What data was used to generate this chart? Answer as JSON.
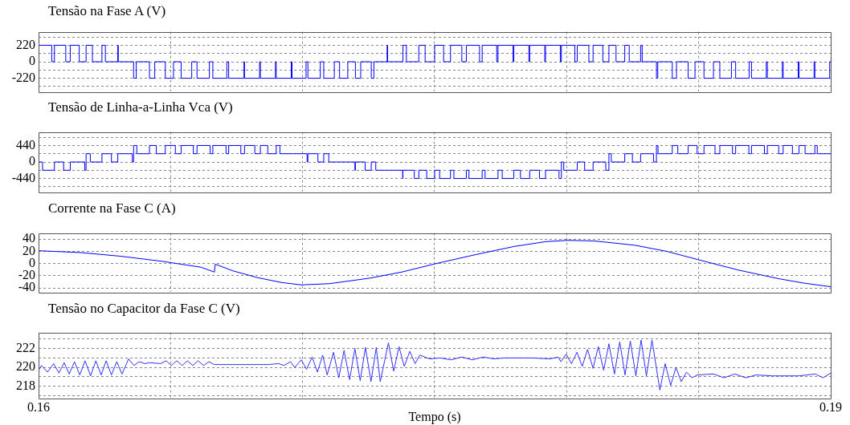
{
  "chart_data": [
    {
      "type": "step",
      "title": "Tensão na Fase A (V)",
      "color": "#0000ff",
      "grid": true,
      "tick_labels": "y",
      "xlim": [
        0.16,
        0.19
      ],
      "xticks": [
        {
          "value": 0.165,
          "label": null
        },
        {
          "value": 0.17,
          "label": null
        },
        {
          "value": 0.175,
          "label": null
        },
        {
          "value": 0.18,
          "label": null
        },
        {
          "value": 0.185,
          "label": null
        }
      ],
      "ylim": [
        -400,
        400
      ],
      "yticks": [
        {
          "value": -330,
          "label": null
        },
        -220,
        {
          "value": -110,
          "label": null
        },
        0,
        {
          "value": 110,
          "label": null
        },
        220,
        {
          "value": 330,
          "label": null
        }
      ],
      "x": [
        0.16,
        0.1605,
        0.1606,
        0.16103,
        0.1612,
        0.16154,
        0.1618,
        0.16204,
        0.1624,
        0.16253,
        0.163,
        0.16302,
        0.1636,
        0.1637,
        0.1642,
        0.1644,
        0.1648,
        0.16511,
        0.1654,
        0.1658,
        0.166,
        0.16647,
        0.1666,
        0.16713,
        0.1672,
        0.16778,
        0.1678,
        0.16837,
        0.1684,
        0.16897,
        0.169,
        0.16957,
        0.1696,
        0.17013,
        0.1702,
        0.17067,
        0.1708,
        0.1712,
        0.1714,
        0.17171,
        0.172,
        0.1722,
        0.1726,
        0.1727,
        0.1732,
        0.17322,
        0.1738,
        0.17393,
        0.1744,
        0.17464,
        0.175,
        0.17534,
        0.1756,
        0.17603,
        0.1762,
        0.1767,
        0.1768,
        0.17735,
        0.1774,
        0.17797,
        0.178,
        0.17857,
        0.1786,
        0.17917,
        0.1792,
        0.17976,
        0.1798,
        0.18031,
        0.1804,
        0.18084,
        0.181,
        0.18137,
        0.1816,
        0.18187,
        0.1822,
        0.18237,
        0.1828,
        0.18286,
        0.1834,
        0.18345,
        0.184,
        0.18416,
        0.1846,
        0.18486,
        0.1852,
        0.18556,
        0.1858,
        0.18624,
        0.1864,
        0.18691,
        0.187,
        0.18756,
        0.1876,
        0.18817,
        0.1882,
        0.18877,
        0.1888,
        0.18937,
        0.1894,
        0.18996,
        0.19
      ],
      "values": [
        220,
        0,
        220,
        0,
        220,
        0,
        220,
        0,
        220,
        0,
        220,
        0,
        -220,
        0,
        -220,
        0,
        -220,
        0,
        -220,
        0,
        -220,
        0,
        -220,
        0,
        -220,
        0,
        -220,
        0,
        -220,
        0,
        -220,
        0,
        -220,
        0,
        -220,
        0,
        -220,
        0,
        -220,
        0,
        -220,
        0,
        -220,
        0,
        220,
        0,
        220,
        0,
        220,
        0,
        220,
        0,
        220,
        0,
        220,
        0,
        220,
        0,
        220,
        0,
        220,
        0,
        220,
        0,
        220,
        0,
        220,
        0,
        220,
        0,
        220,
        0,
        220,
        0,
        220,
        0,
        220,
        0,
        -220,
        0,
        -220,
        0,
        -220,
        0,
        -220,
        0,
        -220,
        0,
        -220,
        0,
        -220,
        0,
        -220,
        0,
        -220,
        0,
        -220,
        0,
        -220,
        0,
        0
      ]
    },
    {
      "type": "step",
      "title": "Tensão de Linha-a-Linha Vca (V)",
      "color": "#0000ff",
      "grid": true,
      "tick_labels": "y",
      "xlim": [
        0.16,
        0.19
      ],
      "xticks": [
        {
          "value": 0.165,
          "label": null
        },
        {
          "value": 0.17,
          "label": null
        },
        {
          "value": 0.175,
          "label": null
        },
        {
          "value": 0.18,
          "label": null
        },
        {
          "value": 0.185,
          "label": null
        }
      ],
      "ylim": [
        -800,
        800
      ],
      "yticks": [
        {
          "value": -660,
          "label": null
        },
        -440,
        {
          "value": -220,
          "label": null
        },
        0,
        {
          "value": 220,
          "label": null
        },
        440,
        {
          "value": 660,
          "label": null
        }
      ],
      "x": [
        0.16,
        0.16015,
        0.1606,
        0.16095,
        0.1612,
        0.16175,
        0.1618,
        0.16196,
        0.1624,
        0.16276,
        0.163,
        0.16355,
        0.1636,
        0.16372,
        0.1642,
        0.16446,
        0.1648,
        0.16518,
        0.1654,
        0.16586,
        0.166,
        0.1665,
        0.1666,
        0.1671,
        0.1672,
        0.16766,
        0.1678,
        0.16819,
        0.1684,
        0.16868,
        0.169,
        0.16914,
        0.1696,
        0.17017,
        0.1702,
        0.17058,
        0.1708,
        0.17099,
        0.1714,
        0.17198,
        0.172,
        0.17237,
        0.1726,
        0.17277,
        0.1732,
        0.17379,
        0.1738,
        0.17423,
        0.1744,
        0.1747,
        0.175,
        0.17519,
        0.1756,
        0.17573,
        0.1762,
        0.1763,
        0.1768,
        0.17691,
        0.1774,
        0.17756,
        0.178,
        0.17825,
        0.1786,
        0.17897,
        0.1792,
        0.17971,
        0.1798,
        0.17989,
        0.1804,
        0.18068,
        0.181,
        0.18148,
        0.1816,
        0.18169,
        0.1822,
        0.18249,
        0.1828,
        0.18329,
        0.1834,
        0.18346,
        0.184,
        0.18421,
        0.1846,
        0.18494,
        0.1852,
        0.18562,
        0.1858,
        0.18628,
        0.1864,
        0.1869,
        0.187,
        0.18749,
        0.1876,
        0.18803,
        0.1882,
        0.18855,
        0.1888,
        0.18903,
        0.1894,
        0.18949,
        0.19
      ],
      "values": [
        0,
        -220,
        0,
        -220,
        0,
        -220,
        220,
        0,
        220,
        0,
        220,
        0,
        440,
        220,
        440,
        220,
        440,
        220,
        440,
        220,
        440,
        220,
        440,
        220,
        440,
        220,
        440,
        220,
        440,
        220,
        440,
        220,
        220,
        0,
        220,
        0,
        220,
        0,
        0,
        -220,
        0,
        -220,
        0,
        -220,
        -220,
        -440,
        -220,
        -440,
        -220,
        -440,
        -220,
        -440,
        -220,
        -440,
        -220,
        -440,
        -220,
        -440,
        -220,
        -440,
        -220,
        -440,
        -220,
        -440,
        -220,
        -440,
        0,
        -220,
        0,
        -220,
        0,
        -220,
        220,
        0,
        220,
        0,
        220,
        0,
        440,
        220,
        440,
        220,
        440,
        220,
        440,
        220,
        440,
        220,
        440,
        220,
        440,
        220,
        440,
        220,
        440,
        220,
        440,
        220,
        440,
        220,
        220
      ]
    },
    {
      "type": "line",
      "title": "Corrente na Fase C (A)",
      "color": "#0000ff",
      "grid": true,
      "tick_labels": "y",
      "xlim": [
        0.16,
        0.19
      ],
      "xticks": [
        {
          "value": 0.165,
          "label": null
        },
        {
          "value": 0.17,
          "label": null
        },
        {
          "value": 0.175,
          "label": null
        },
        {
          "value": 0.18,
          "label": null
        },
        {
          "value": 0.185,
          "label": null
        }
      ],
      "ylim": [
        -47,
        50
      ],
      "yticks": [
        -40,
        -20,
        0,
        20,
        40
      ],
      "x": [
        0.16,
        0.16158,
        0.1631,
        0.16462,
        0.16615,
        0.16666,
        0.16669,
        0.16736,
        0.16828,
        0.16919,
        0.16995,
        0.17101,
        0.17254,
        0.17375,
        0.17506,
        0.17649,
        0.17801,
        0.17923,
        0.18005,
        0.18105,
        0.18258,
        0.18379,
        0.18501,
        0.18653,
        0.18805,
        0.18897,
        0.19
      ],
      "values": [
        21,
        18,
        12,
        4,
        -6,
        -14,
        -1,
        -12,
        -23,
        -31,
        -35,
        -33,
        -24,
        -14,
        0,
        14,
        28,
        36,
        38,
        37,
        30,
        20,
        6,
        -11,
        -25,
        -32,
        -38
      ]
    },
    {
      "type": "line",
      "title": "Tensão no Capacitor da Fase C (V)",
      "xlabel": "Tempo (s)",
      "color": "#3030ff",
      "grid": true,
      "xlim": [
        0.16,
        0.19
      ],
      "xticks": [
        0.16,
        {
          "value": 0.165,
          "label": null
        },
        {
          "value": 0.17,
          "label": null
        },
        {
          "value": 0.175,
          "label": null
        },
        {
          "value": 0.18,
          "label": null
        },
        {
          "value": 0.185,
          "label": null
        },
        0.19
      ],
      "ylim": [
        216.7,
        223.7
      ],
      "yticks": [
        {
          "value": 217,
          "label": null
        },
        218,
        {
          "value": 219,
          "label": null
        },
        220,
        {
          "value": 221,
          "label": null
        },
        222,
        {
          "value": 223,
          "label": null
        }
      ],
      "x": [
        0.16,
        0.16011,
        0.16034,
        0.16057,
        0.16077,
        0.16097,
        0.16116,
        0.16136,
        0.16156,
        0.16176,
        0.16197,
        0.16217,
        0.16237,
        0.16256,
        0.16276,
        0.16296,
        0.16316,
        0.16341,
        0.16361,
        0.16381,
        0.16402,
        0.16422,
        0.16462,
        0.16483,
        0.16503,
        0.16523,
        0.16544,
        0.16564,
        0.16584,
        0.16604,
        0.16625,
        0.16645,
        0.16665,
        0.16767,
        0.16868,
        0.16909,
        0.16929,
        0.16954,
        0.1697,
        0.16995,
        0.17015,
        0.17036,
        0.17056,
        0.17076,
        0.17093,
        0.17117,
        0.17137,
        0.17157,
        0.17178,
        0.17198,
        0.17218,
        0.17238,
        0.17259,
        0.17279,
        0.17294,
        0.17325,
        0.17345,
        0.17365,
        0.17385,
        0.17406,
        0.17426,
        0.17444,
        0.17481,
        0.17521,
        0.17562,
        0.17603,
        0.17643,
        0.17684,
        0.17724,
        0.17765,
        0.17866,
        0.17937,
        0.17968,
        0.17978,
        0.17998,
        0.18018,
        0.18039,
        0.18059,
        0.18079,
        0.181,
        0.1812,
        0.1814,
        0.1816,
        0.18181,
        0.18201,
        0.18221,
        0.18241,
        0.18262,
        0.18282,
        0.18302,
        0.18323,
        0.18353,
        0.18373,
        0.18394,
        0.18414,
        0.18434,
        0.18454,
        0.18475,
        0.18495,
        0.18556,
        0.18596,
        0.18637,
        0.18678,
        0.18718,
        0.18779,
        0.1888,
        0.18941,
        0.18971,
        0.19
      ],
      "values": [
        219.7,
        220.2,
        219.5,
        220.4,
        219.4,
        220.5,
        219.3,
        220.6,
        219.2,
        220.7,
        219.1,
        220.7,
        219.2,
        220.7,
        219.2,
        220.6,
        219.3,
        220.9,
        220.2,
        220.6,
        220.4,
        220.5,
        220.4,
        220.7,
        220.2,
        220.7,
        220.2,
        220.7,
        220.2,
        220.7,
        220.2,
        220.6,
        220.3,
        220.3,
        220.3,
        220.4,
        220.2,
        220.6,
        220.0,
        220.8,
        219.8,
        221.1,
        219.5,
        221.3,
        219.2,
        221.6,
        218.9,
        221.8,
        218.7,
        222.0,
        218.6,
        222.1,
        218.5,
        222.1,
        218.5,
        222.6,
        219.6,
        222.2,
        220.1,
        221.7,
        220.4,
        221.3,
        220.9,
        221.0,
        220.8,
        221.1,
        220.8,
        221.1,
        220.9,
        221.0,
        221.0,
        220.9,
        221.1,
        220.6,
        221.4,
        220.4,
        221.6,
        220.1,
        221.9,
        219.9,
        222.2,
        219.7,
        222.5,
        219.3,
        222.7,
        219.2,
        222.8,
        219.1,
        222.9,
        219.1,
        222.9,
        217.6,
        220.4,
        218.1,
        220.0,
        218.5,
        219.5,
        218.9,
        219.2,
        219.3,
        218.9,
        219.3,
        218.9,
        219.2,
        219.1,
        219.1,
        219.3,
        218.9,
        219.4
      ]
    }
  ]
}
